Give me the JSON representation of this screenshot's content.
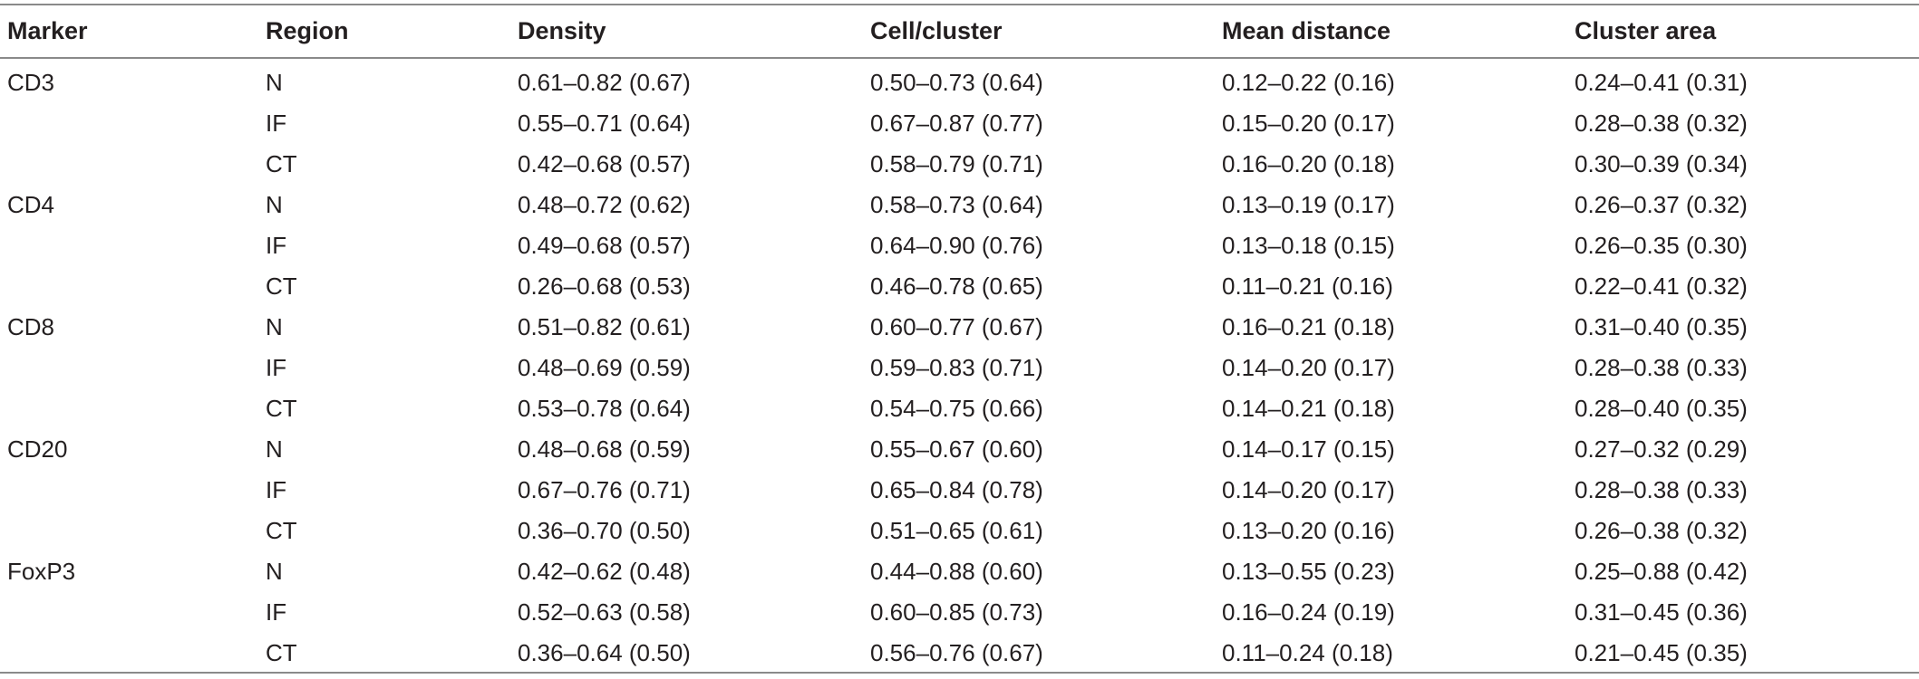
{
  "columns": [
    "Marker",
    "Region",
    "Density",
    "Cell/cluster",
    "Mean distance",
    "Cluster area"
  ],
  "rows": [
    {
      "marker": "CD3",
      "region": "N",
      "density": "0.61–0.82 (0.67)",
      "cell_cluster": "0.50–0.73 (0.64)",
      "mean_distance": "0.12–0.22 (0.16)",
      "cluster_area": "0.24–0.41 (0.31)"
    },
    {
      "marker": "",
      "region": "IF",
      "density": "0.55–0.71 (0.64)",
      "cell_cluster": "0.67–0.87 (0.77)",
      "mean_distance": "0.15–0.20 (0.17)",
      "cluster_area": "0.28–0.38 (0.32)"
    },
    {
      "marker": "",
      "region": "CT",
      "density": "0.42–0.68 (0.57)",
      "cell_cluster": "0.58–0.79 (0.71)",
      "mean_distance": "0.16–0.20 (0.18)",
      "cluster_area": "0.30–0.39 (0.34)"
    },
    {
      "marker": "CD4",
      "region": "N",
      "density": "0.48–0.72 (0.62)",
      "cell_cluster": "0.58–0.73 (0.64)",
      "mean_distance": "0.13–0.19 (0.17)",
      "cluster_area": "0.26–0.37 (0.32)"
    },
    {
      "marker": "",
      "region": "IF",
      "density": "0.49–0.68 (0.57)",
      "cell_cluster": "0.64–0.90 (0.76)",
      "mean_distance": "0.13–0.18 (0.15)",
      "cluster_area": "0.26–0.35 (0.30)"
    },
    {
      "marker": "",
      "region": "CT",
      "density": "0.26–0.68 (0.53)",
      "cell_cluster": "0.46–0.78 (0.65)",
      "mean_distance": "0.11–0.21 (0.16)",
      "cluster_area": "0.22–0.41 (0.32)"
    },
    {
      "marker": "CD8",
      "region": "N",
      "density": "0.51–0.82 (0.61)",
      "cell_cluster": "0.60–0.77 (0.67)",
      "mean_distance": "0.16–0.21 (0.18)",
      "cluster_area": "0.31–0.40 (0.35)"
    },
    {
      "marker": "",
      "region": "IF",
      "density": "0.48–0.69 (0.59)",
      "cell_cluster": "0.59–0.83 (0.71)",
      "mean_distance": "0.14–0.20 (0.17)",
      "cluster_area": "0.28–0.38 (0.33)"
    },
    {
      "marker": "",
      "region": "CT",
      "density": "0.53–0.78 (0.64)",
      "cell_cluster": "0.54–0.75 (0.66)",
      "mean_distance": "0.14–0.21 (0.18)",
      "cluster_area": "0.28–0.40 (0.35)"
    },
    {
      "marker": "CD20",
      "region": "N",
      "density": "0.48–0.68 (0.59)",
      "cell_cluster": "0.55–0.67 (0.60)",
      "mean_distance": "0.14–0.17 (0.15)",
      "cluster_area": "0.27–0.32 (0.29)"
    },
    {
      "marker": "",
      "region": "IF",
      "density": "0.67–0.76 (0.71)",
      "cell_cluster": "0.65–0.84 (0.78)",
      "mean_distance": "0.14–0.20 (0.17)",
      "cluster_area": "0.28–0.38 (0.33)"
    },
    {
      "marker": "",
      "region": "CT",
      "density": "0.36–0.70 (0.50)",
      "cell_cluster": "0.51–0.65 (0.61)",
      "mean_distance": "0.13–0.20 (0.16)",
      "cluster_area": "0.26–0.38 (0.32)"
    },
    {
      "marker": "FoxP3",
      "region": "N",
      "density": "0.42–0.62 (0.48)",
      "cell_cluster": "0.44–0.88 (0.60)",
      "mean_distance": "0.13–0.55 (0.23)",
      "cluster_area": "0.25–0.88 (0.42)"
    },
    {
      "marker": "",
      "region": "IF",
      "density": "0.52–0.63 (0.58)",
      "cell_cluster": "0.60–0.85 (0.73)",
      "mean_distance": "0.16–0.24 (0.19)",
      "cluster_area": "0.31–0.45 (0.36)"
    },
    {
      "marker": "",
      "region": "CT",
      "density": "0.36–0.64 (0.50)",
      "cell_cluster": "0.56–0.76 (0.67)",
      "mean_distance": "0.11–0.24 (0.18)",
      "cluster_area": "0.21–0.45 (0.35)"
    }
  ]
}
